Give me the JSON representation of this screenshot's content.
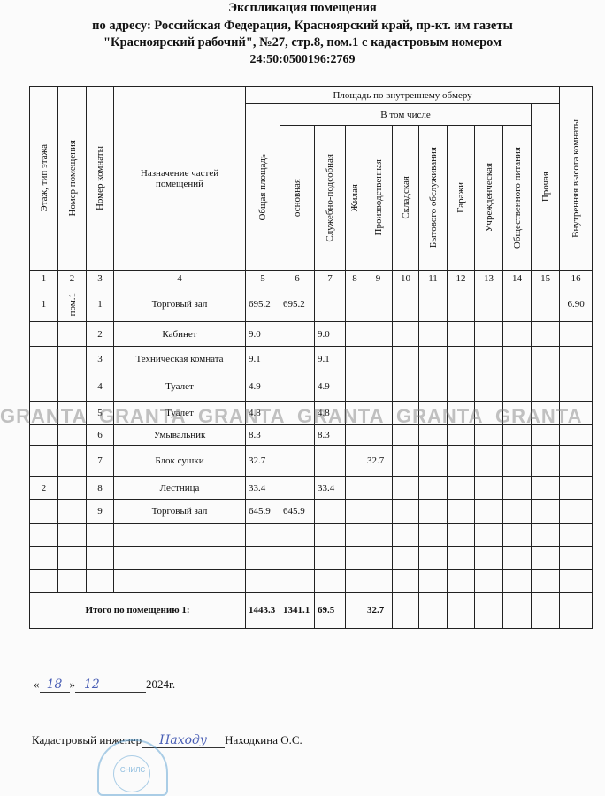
{
  "title": {
    "line1": "Экспликация помещения",
    "line2": "по адресу: Российская Федерация, Красноярский край, пр-кт. им газеты",
    "line3": "\"Красноярский рабочий\", №27, стр.8, пом.1 с кадастровым номером",
    "line4": "24:50:0500196:2769"
  },
  "table": {
    "headers": {
      "floor": "Этаж, тип этажа",
      "premise_no": "Номер помещения",
      "room_no": "Номер комнаты",
      "purpose": "Назначение частей помещений",
      "area_group": "Площадь   по внутреннему   обмеру",
      "total_area": "Общая площадь",
      "including": "В том числе",
      "c6": "основная",
      "c7": "Служебно-подсобная",
      "c8": "Жилая",
      "c9": "Производственная",
      "c10": "Складская",
      "c11": "Бытового обслуживания",
      "c12": "Гаражи",
      "c13": "Учрежденческая",
      "c14": "Общественного питания",
      "c15": "Прочая",
      "c16": "Внутренняя высота комнаты"
    },
    "column_numbers": [
      "1",
      "2",
      "3",
      "4",
      "5",
      "6",
      "7",
      "8",
      "9",
      "10",
      "11",
      "12",
      "13",
      "14",
      "15",
      "16"
    ],
    "rows": [
      [
        "1",
        "пом.1",
        "1",
        "Торговый зал",
        "695.2",
        "695.2",
        "",
        "",
        "",
        "",
        "",
        "",
        "",
        "",
        "",
        "6.90"
      ],
      [
        "",
        "",
        "2",
        "Кабинет",
        "9.0",
        "",
        "9.0",
        "",
        "",
        "",
        "",
        "",
        "",
        "",
        "",
        ""
      ],
      [
        "",
        "",
        "3",
        "Техническая комната",
        "9.1",
        "",
        "9.1",
        "",
        "",
        "",
        "",
        "",
        "",
        "",
        "",
        ""
      ],
      [
        "",
        "",
        "4",
        "Туалет",
        "4.9",
        "",
        "4.9",
        "",
        "",
        "",
        "",
        "",
        "",
        "",
        "",
        ""
      ],
      [
        "",
        "",
        "5",
        "Туалет",
        "4.8",
        "",
        "4.8",
        "",
        "",
        "",
        "",
        "",
        "",
        "",
        "",
        ""
      ],
      [
        "",
        "",
        "6",
        "Умывальник",
        "8.3",
        "",
        "8.3",
        "",
        "",
        "",
        "",
        "",
        "",
        "",
        "",
        ""
      ],
      [
        "",
        "",
        "7",
        "Блок сушки",
        "32.7",
        "",
        "",
        "",
        "32.7",
        "",
        "",
        "",
        "",
        "",
        "",
        ""
      ],
      [
        "2",
        "",
        "8",
        "Лестница",
        "33.4",
        "",
        "33.4",
        "",
        "",
        "",
        "",
        "",
        "",
        "",
        "",
        ""
      ],
      [
        "",
        "",
        "9",
        "Торговый зал",
        "645.9",
        "645.9",
        "",
        "",
        "",
        "",
        "",
        "",
        "",
        "",
        "",
        ""
      ],
      [
        "",
        "",
        "",
        "",
        "",
        "",
        "",
        "",
        "",
        "",
        "",
        "",
        "",
        "",
        "",
        ""
      ],
      [
        "",
        "",
        "",
        "",
        "",
        "",
        "",
        "",
        "",
        "",
        "",
        "",
        "",
        "",
        "",
        ""
      ],
      [
        "",
        "",
        "",
        "",
        "",
        "",
        "",
        "",
        "",
        "",
        "",
        "",
        "",
        "",
        "",
        ""
      ]
    ],
    "total": {
      "label": "Итого по помещению 1:",
      "values": [
        "1443.3",
        "1341.1",
        "69.5",
        "",
        "32.7",
        "",
        "",
        "",
        "",
        "",
        "",
        ""
      ]
    }
  },
  "watermark": "GRANTA",
  "footer": {
    "date_open": "«",
    "date_day": "18",
    "date_mid": "»",
    "date_month": "12",
    "date_year": "2024г.",
    "engineer_label": "Кадастровый инженер",
    "signature": "Находу",
    "engineer_name": "Находкина О.С.",
    "stamp_text": "СНИЛС"
  }
}
